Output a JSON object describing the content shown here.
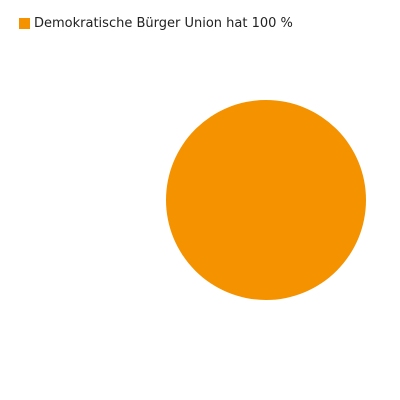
{
  "chart_data": {
    "type": "pie",
    "slices": [
      {
        "label": "Demokratische Bürger Union hat 100 %",
        "value": 100,
        "color": "#f49200"
      }
    ],
    "legend_position": "top-left"
  }
}
